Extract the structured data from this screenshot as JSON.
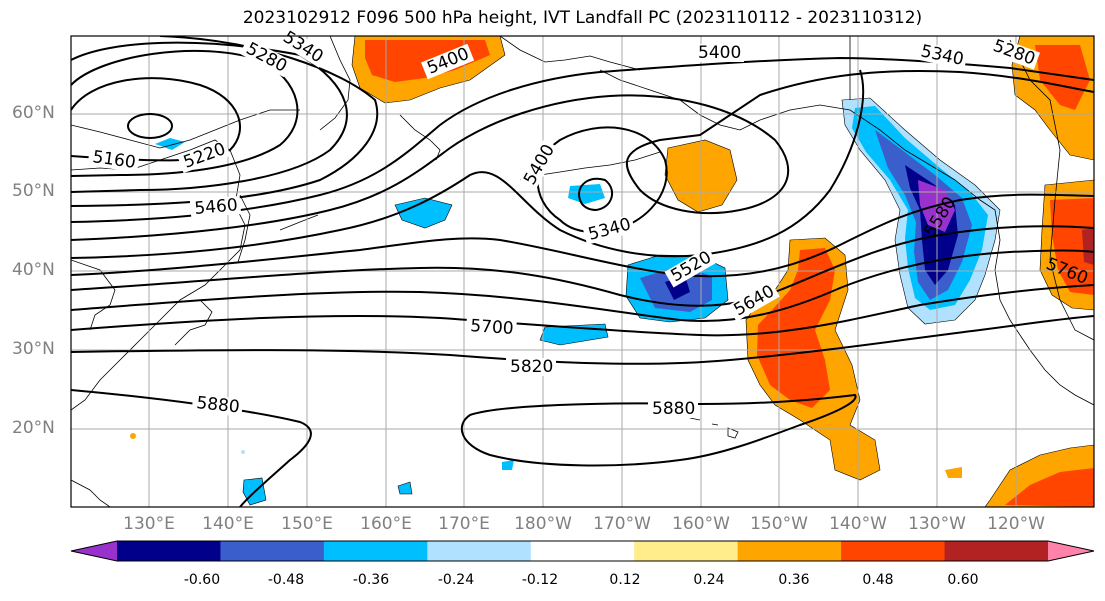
{
  "title": "2023102912 F096 500 hPa height, IVT Landfall PC (2023110112 - 2023110312)",
  "map": {
    "lat_labels": [
      "60°N",
      "50°N",
      "40°N",
      "30°N",
      "20°N"
    ],
    "lon_labels": [
      "130°E",
      "140°E",
      "150°E",
      "160°E",
      "170°E",
      "180°W",
      "170°W",
      "160°W",
      "150°W",
      "140°W",
      "130°W",
      "120°W"
    ],
    "contour_labels": [
      "5280",
      "5340",
      "5400",
      "5160",
      "5220",
      "5460",
      "5400",
      "5340",
      "5520",
      "5400",
      "5340",
      "5280",
      "5580",
      "5640",
      "5700",
      "5760",
      "5820",
      "5880",
      "5880"
    ],
    "gridline_color": "#a9a9a9"
  },
  "colorbar": {
    "tick_labels": [
      "-0.60",
      "-0.48",
      "-0.36",
      "-0.24",
      "-0.12",
      "0.12",
      "0.24",
      "0.36",
      "0.48",
      "0.60"
    ],
    "colors": [
      "#9932cc",
      "#00008b",
      "#3a5fcd",
      "#00bfff",
      "#b0e2ff",
      "#ffffff",
      "#ffec8b",
      "#ffa500",
      "#ff4500",
      "#b22222",
      "#ff82ab"
    ]
  }
}
